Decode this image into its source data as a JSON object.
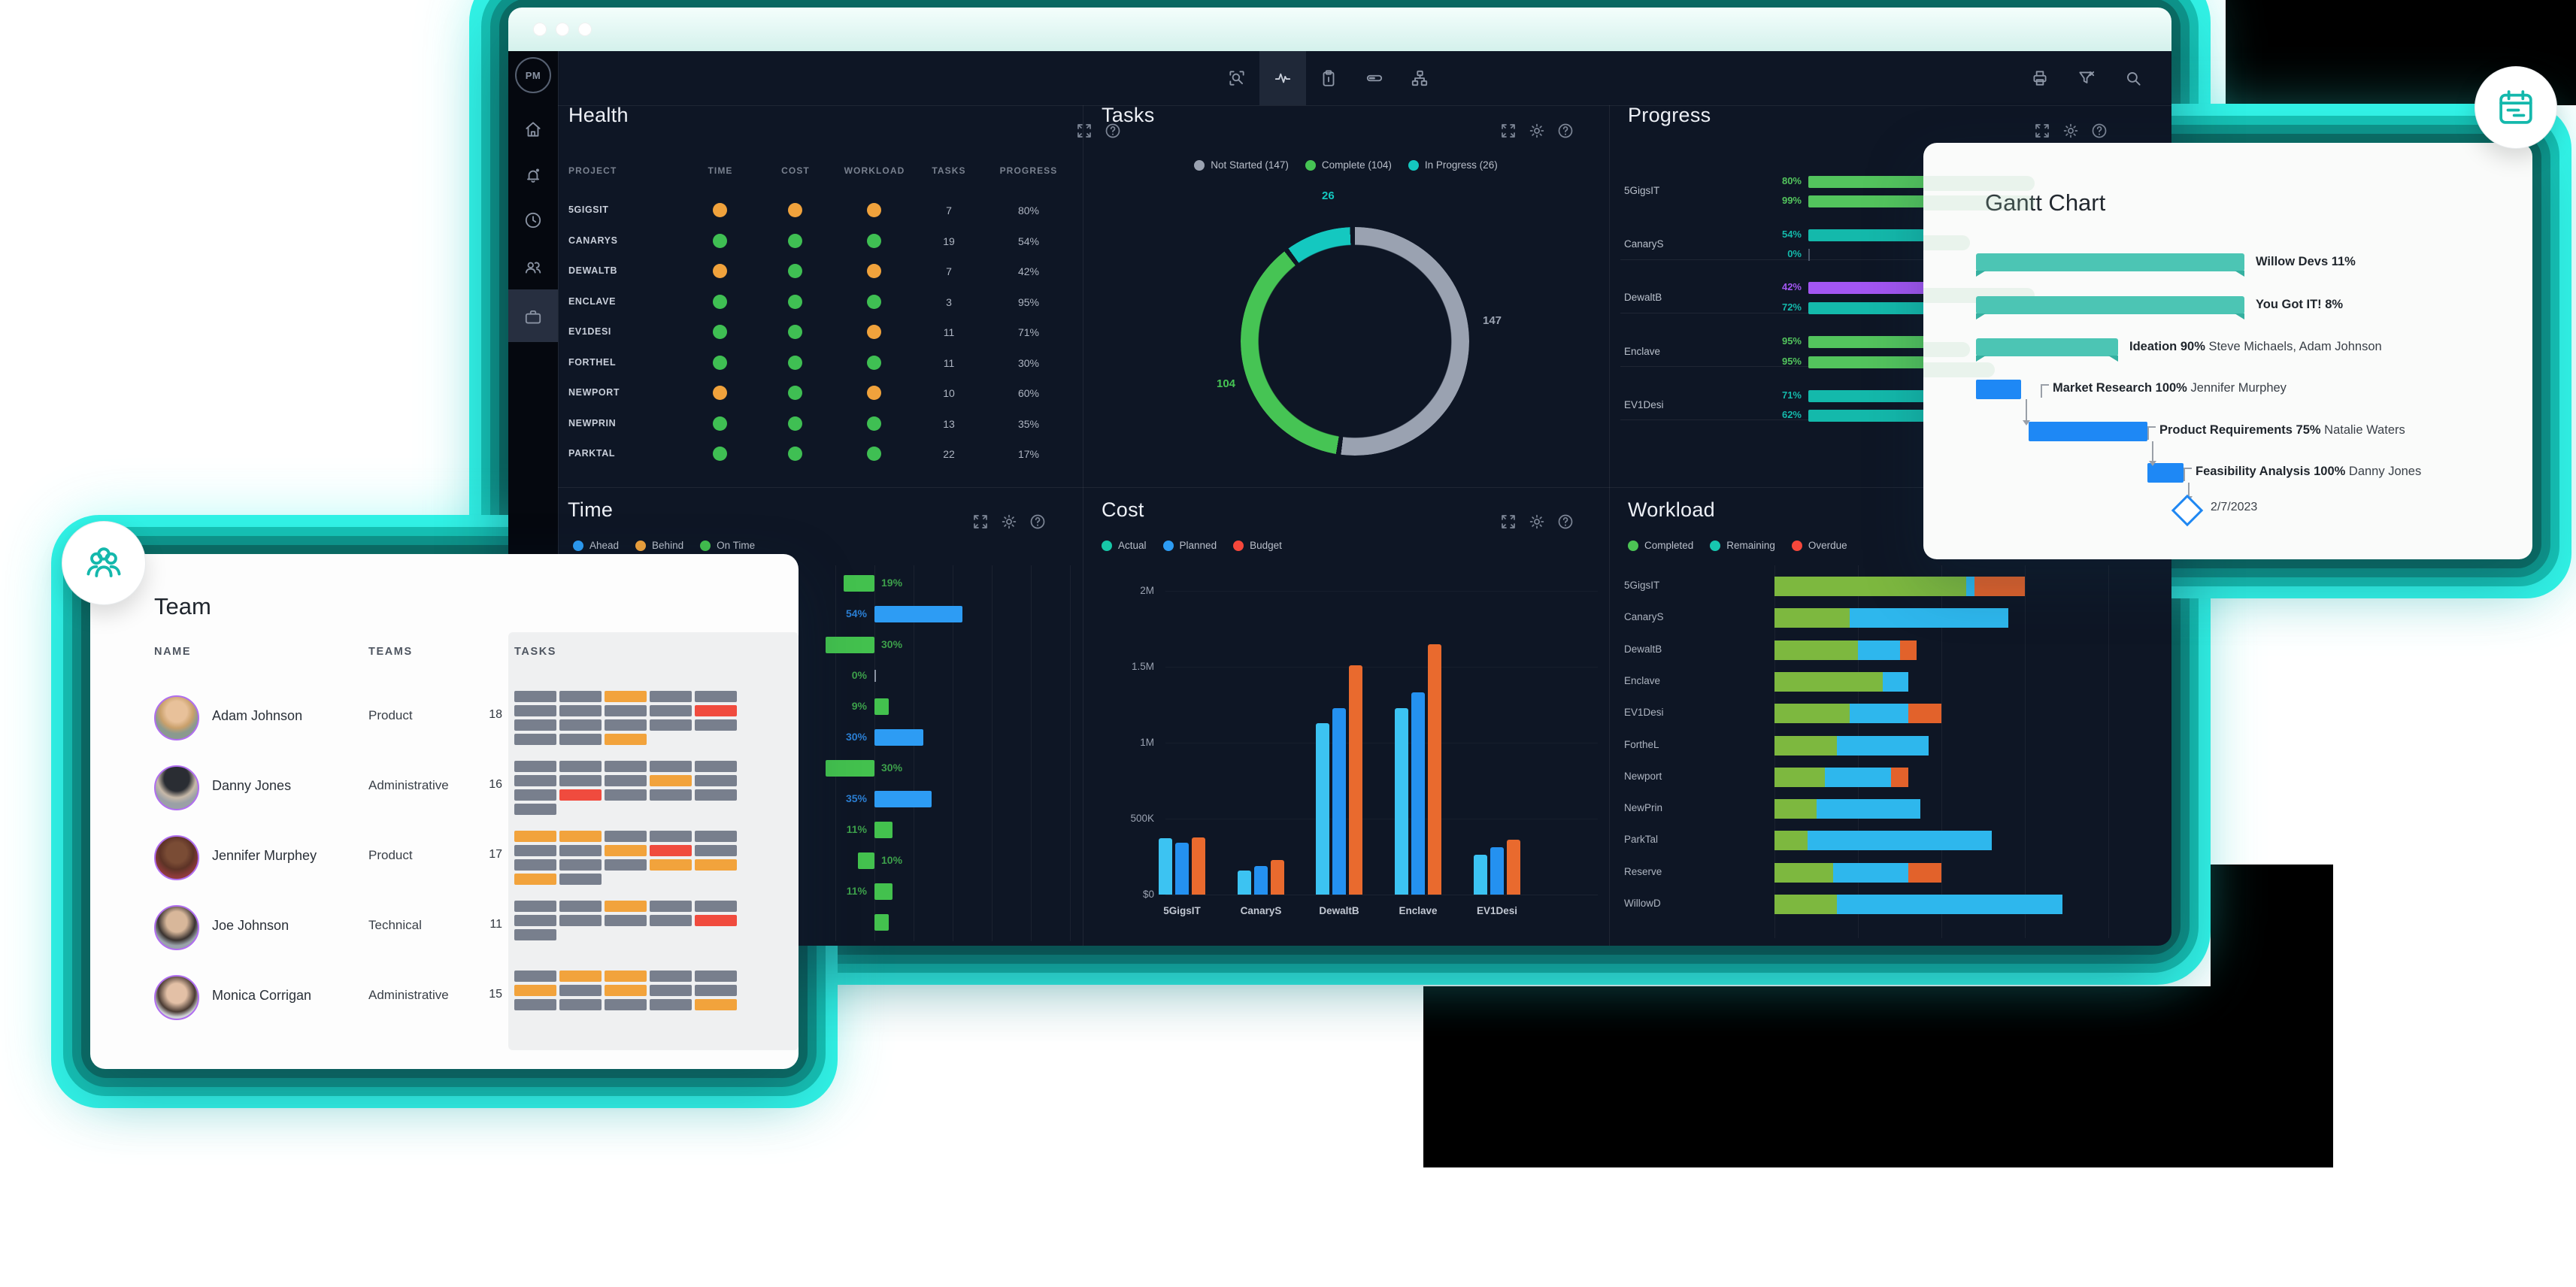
{
  "window": {
    "traffic_dots": 3
  },
  "sidebar": {
    "logo": "PM",
    "items": [
      {
        "icon": "home-icon"
      },
      {
        "icon": "bell-icon"
      },
      {
        "icon": "clock-icon"
      },
      {
        "icon": "people-icon"
      },
      {
        "icon": "briefcase-icon"
      }
    ],
    "active_index": 4
  },
  "toolbar": {
    "center_icons": [
      "zoom-search-icon",
      "activity-icon",
      "clipboard-icon",
      "progress-bar-icon",
      "org-chart-icon"
    ],
    "active_index": 1,
    "right_icons": [
      "printer-icon",
      "filter-icon",
      "search-icon"
    ]
  },
  "health": {
    "title": "Health",
    "header_icons": [
      "expand-icon",
      "help-icon"
    ],
    "columns": [
      "PROJECT",
      "TIME",
      "COST",
      "WORKLOAD",
      "TASKS",
      "PROGRESS"
    ],
    "rows": [
      {
        "project": "5GIGSIT",
        "time": "orange",
        "cost": "orange",
        "workload": "orange",
        "tasks": "7",
        "progress": "80%"
      },
      {
        "project": "CANARYS",
        "time": "green",
        "cost": "green",
        "workload": "green",
        "tasks": "19",
        "progress": "54%"
      },
      {
        "project": "DEWALTB",
        "time": "orange",
        "cost": "green",
        "workload": "orange",
        "tasks": "7",
        "progress": "42%"
      },
      {
        "project": "ENCLAVE",
        "time": "green",
        "cost": "green",
        "workload": "green",
        "tasks": "3",
        "progress": "95%"
      },
      {
        "project": "EV1DESI",
        "time": "green",
        "cost": "green",
        "workload": "orange",
        "tasks": "11",
        "progress": "71%"
      },
      {
        "project": "FORTHEL",
        "time": "green",
        "cost": "green",
        "workload": "green",
        "tasks": "11",
        "progress": "30%"
      },
      {
        "project": "NEWPORT",
        "time": "orange",
        "cost": "green",
        "workload": "orange",
        "tasks": "10",
        "progress": "60%"
      },
      {
        "project": "NEWPRIN",
        "time": "green",
        "cost": "green",
        "workload": "green",
        "tasks": "13",
        "progress": "35%"
      },
      {
        "project": "PARKTAL",
        "time": "green",
        "cost": "green",
        "workload": "green",
        "tasks": "22",
        "progress": "17%"
      }
    ]
  },
  "tasks": {
    "title": "Tasks",
    "header_icons": [
      "expand-icon",
      "settings-icon",
      "help-icon"
    ],
    "legend": [
      {
        "label": "Not Started (147)",
        "color": "#9aa2b1"
      },
      {
        "label": "Complete (104)",
        "color": "#46c454"
      },
      {
        "label": "In Progress (26)",
        "color": "#14c8c0"
      }
    ],
    "donut": {
      "slices": [
        {
          "label": "147",
          "value": 147,
          "color": "#9aa2b1"
        },
        {
          "label": "104",
          "value": 104,
          "color": "#46c454"
        },
        {
          "label": "26",
          "value": 26,
          "color": "#14c8c0"
        }
      ]
    }
  },
  "progress": {
    "title": "Progress",
    "header_icons": [
      "expand-icon",
      "settings-icon",
      "help-icon"
    ],
    "groups": [
      {
        "project": "5GigsIT",
        "bars": [
          {
            "value": 80,
            "label": "80%",
            "color": "green"
          },
          {
            "value": 99,
            "label": "99%",
            "color": "green"
          }
        ]
      },
      {
        "project": "CanaryS",
        "bars": [
          {
            "value": 54,
            "label": "54%",
            "color": "teal"
          },
          {
            "value": 0,
            "label": "0%",
            "color": "teal"
          }
        ]
      },
      {
        "project": "DewaltB",
        "bars": [
          {
            "value": 42,
            "label": "42%",
            "color": "purple"
          },
          {
            "value": 72,
            "label": "72%",
            "color": "teal"
          }
        ]
      },
      {
        "project": "Enclave",
        "bars": [
          {
            "value": 95,
            "label": "95%",
            "color": "green"
          },
          {
            "value": 95,
            "label": "95%",
            "color": "green"
          }
        ]
      },
      {
        "project": "EV1Desi",
        "bars": [
          {
            "value": 71,
            "label": "71%",
            "color": "teal"
          },
          {
            "value": 62,
            "label": "62%",
            "color": "teal"
          }
        ]
      }
    ]
  },
  "time": {
    "title": "Time",
    "header_icons": [
      "expand-icon",
      "settings-icon",
      "help-icon"
    ],
    "legend": [
      {
        "label": "Ahead",
        "color": "#2d9cf4"
      },
      {
        "label": "Behind",
        "color": "#f0a23c"
      },
      {
        "label": "On Time",
        "color": "#43c14e"
      }
    ],
    "rows": [
      {
        "value": 19,
        "label": "19%",
        "side": "left",
        "color": "green"
      },
      {
        "value": 54,
        "label": "54%",
        "side": "right",
        "color": "blue"
      },
      {
        "value": 30,
        "label": "30%",
        "side": "left",
        "color": "green"
      },
      {
        "value": 0,
        "label": "0%",
        "side": "tick",
        "color": "green"
      },
      {
        "value": 9,
        "label": "9%",
        "side": "right",
        "color": "green"
      },
      {
        "value": 30,
        "label": "30%",
        "side": "right",
        "color": "blue"
      },
      {
        "value": 30,
        "label": "30%",
        "side": "left",
        "color": "green"
      },
      {
        "value": 35,
        "label": "35%",
        "side": "right",
        "color": "blue"
      },
      {
        "value": 11,
        "label": "11%",
        "side": "right",
        "color": "green"
      },
      {
        "value": 10,
        "label": "10%",
        "side": "left",
        "color": "green"
      },
      {
        "value": 11,
        "label": "11%",
        "side": "right",
        "color": "green"
      },
      {
        "value": 9,
        "label": "",
        "side": "right",
        "color": "green",
        "partial": true
      }
    ]
  },
  "cost": {
    "title": "Cost",
    "header_icons": [
      "expand-icon",
      "settings-icon",
      "help-icon"
    ],
    "legend": [
      {
        "label": "Actual",
        "color": "#17c7a8"
      },
      {
        "label": "Planned",
        "color": "#2d9cf4"
      },
      {
        "label": "Budget",
        "color": "#f5473b"
      }
    ],
    "y_ticks": [
      "2M",
      "1.5M",
      "1M",
      "500K",
      "$0"
    ],
    "ylim_k": [
      0,
      2000
    ],
    "categories": [
      "5GigsIT",
      "CanaryS",
      "DewaltB",
      "Enclave",
      "EV1Desi"
    ],
    "series": [
      {
        "name": "Actual",
        "color": "#3cc3f2",
        "values_k": [
          370,
          160,
          1130,
          1230,
          260
        ]
      },
      {
        "name": "Planned",
        "color": "#2491f0",
        "values_k": [
          340,
          190,
          1230,
          1330,
          310
        ]
      },
      {
        "name": "Budget",
        "color": "#e96a2e",
        "values_k": [
          375,
          230,
          1510,
          1650,
          360
        ]
      }
    ]
  },
  "workload": {
    "title": "Workload",
    "header_icons": [
      "expand-icon",
      "settings-icon",
      "help-icon"
    ],
    "legend": [
      {
        "label": "Completed",
        "color": "#4cc354"
      },
      {
        "label": "Remaining",
        "color": "#17c7b0"
      },
      {
        "label": "Overdue",
        "color": "#f5473b"
      }
    ],
    "rows": [
      {
        "project": "5GigsIT",
        "completed": 23,
        "remaining": 1,
        "overdue": 6
      },
      {
        "project": "CanaryS",
        "completed": 9,
        "remaining": 19,
        "overdue": 0
      },
      {
        "project": "DewaltB",
        "completed": 10,
        "remaining": 5,
        "overdue": 2
      },
      {
        "project": "Enclave",
        "completed": 13,
        "remaining": 3,
        "overdue": 0
      },
      {
        "project": "EV1Desi",
        "completed": 9,
        "remaining": 7,
        "overdue": 4
      },
      {
        "project": "FortheL",
        "completed": 7.5,
        "remaining": 11,
        "overdue": 0
      },
      {
        "project": "Newport",
        "completed": 6,
        "remaining": 8,
        "overdue": 2
      },
      {
        "project": "NewPrin",
        "completed": 5,
        "remaining": 12.5,
        "overdue": 0
      },
      {
        "project": "ParkTal",
        "completed": 4,
        "remaining": 22,
        "overdue": 0
      },
      {
        "project": "Reserve",
        "completed": 7,
        "remaining": 9,
        "overdue": 4
      },
      {
        "project": "WillowD",
        "completed": 7.5,
        "remaining": 27,
        "overdue": 0
      }
    ]
  },
  "team_card": {
    "title": "Team",
    "columns": [
      "NAME",
      "TEAMS",
      "TASKS"
    ],
    "members": [
      {
        "name": "Adam Johnson",
        "team": "Product",
        "tasks": "18",
        "blocks": [
          [
            "gray",
            "gray",
            "orange",
            "gray",
            "gray"
          ],
          [
            "gray",
            "gray",
            "gray",
            "gray",
            "red"
          ],
          [
            "gray",
            "gray",
            "gray",
            "gray",
            "gray"
          ],
          [
            "gray",
            "gray",
            "orange"
          ]
        ]
      },
      {
        "name": "Danny Jones",
        "team": "Administrative",
        "tasks": "16",
        "blocks": [
          [
            "gray",
            "gray",
            "gray",
            "gray",
            "gray"
          ],
          [
            "gray",
            "gray",
            "gray",
            "orange",
            "gray"
          ],
          [
            "gray",
            "red",
            "gray",
            "gray",
            "gray"
          ],
          [
            "gray"
          ]
        ]
      },
      {
        "name": "Jennifer Murphey",
        "team": "Product",
        "tasks": "17",
        "blocks": [
          [
            "orange",
            "orange",
            "gray",
            "gray",
            "gray"
          ],
          [
            "gray",
            "gray",
            "orange",
            "red",
            "gray"
          ],
          [
            "gray",
            "gray",
            "gray",
            "orange",
            "orange"
          ],
          [
            "orange",
            "gray"
          ]
        ]
      },
      {
        "name": "Joe Johnson",
        "team": "Technical",
        "tasks": "11",
        "blocks": [
          [
            "gray",
            "gray",
            "orange",
            "gray",
            "gray"
          ],
          [
            "gray",
            "gray",
            "gray",
            "gray",
            "red"
          ],
          [
            "gray"
          ]
        ]
      },
      {
        "name": "Monica Corrigan",
        "team": "Administrative",
        "tasks": "15",
        "blocks": [
          [
            "gray",
            "orange",
            "orange",
            "gray",
            "gray"
          ],
          [
            "orange",
            "gray",
            "orange",
            "gray",
            "gray"
          ],
          [
            "gray",
            "gray",
            "gray",
            "gray",
            "orange"
          ]
        ]
      }
    ]
  },
  "gantt_card": {
    "title": "Gantt Chart",
    "rows": [
      {
        "kind": "summary",
        "bold": "Willow Devs 11%",
        "rest": ""
      },
      {
        "kind": "summary",
        "bold": "You Got IT! 8%",
        "rest": ""
      },
      {
        "kind": "summary",
        "bold": "Ideation 90%",
        "rest": " Steve Michaels, Adam Johnson"
      },
      {
        "kind": "task",
        "bold": "Market Research 100%",
        "rest": " Jennifer Murphey"
      },
      {
        "kind": "task",
        "bold": "Product Requirements 75%",
        "rest": " Natalie Waters"
      },
      {
        "kind": "task",
        "bold": "Feasibility Analysis 100%",
        "rest": " Danny Jones"
      }
    ],
    "milestone": {
      "date": "2/7/2023"
    }
  },
  "colors": {
    "accent": "#31f2e6",
    "health_green": "#3fbf53",
    "health_orange": "#f0a23c",
    "progress": {
      "green": "#53c45d",
      "teal": "#14b9ab",
      "purple": "#a356f2"
    },
    "time_bar": {
      "green": "#43c14e",
      "blue": "#2d9cf4"
    },
    "time_label": {
      "green": "#3da04b",
      "blue": "#2b7fd4"
    },
    "workload": {
      "completed": "#7db83f",
      "remaining": "#2eb7ed",
      "overdue": "#e2622b"
    },
    "block": {
      "gray": "#787f8d",
      "orange": "#f2a33c",
      "red": "#f04b3e"
    }
  }
}
